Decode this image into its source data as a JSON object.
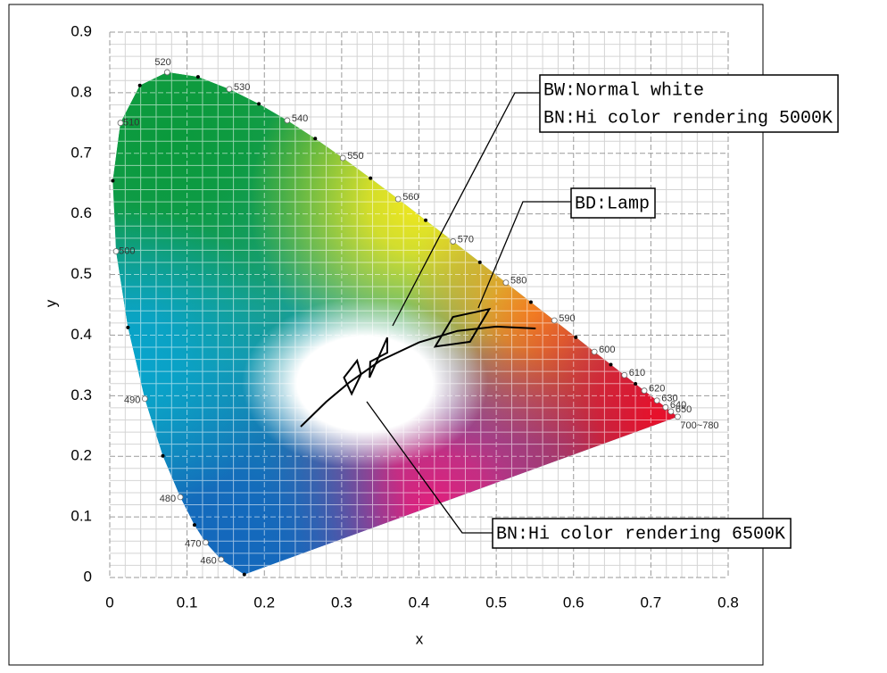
{
  "chart_data": {
    "type": "chromaticity",
    "xlabel": "x",
    "ylabel": "y",
    "xlim": [
      0,
      0.8
    ],
    "ylim": [
      0,
      0.9
    ],
    "xticks": [
      0,
      0.1,
      0.2,
      0.3,
      0.4,
      0.5,
      0.6,
      0.7,
      0.8
    ],
    "yticks": [
      0,
      0.1,
      0.2,
      0.3,
      0.4,
      0.5,
      0.6,
      0.7,
      0.8,
      0.9
    ],
    "grid": true,
    "minor_grid_divisions": 5,
    "locus": {
      "labels": [
        null,
        "460",
        "470",
        null,
        "480",
        null,
        "490",
        null,
        "500",
        null,
        "510",
        null,
        "520",
        null,
        "530",
        null,
        "540",
        null,
        "550",
        null,
        "560",
        null,
        "570",
        null,
        "580",
        null,
        "590",
        null,
        "600",
        null,
        "610",
        null,
        "620",
        "630",
        "640",
        "650",
        "700~780"
      ],
      "x": [
        0.1741,
        0.144,
        0.1241,
        0.1096,
        0.0913,
        0.0687,
        0.0454,
        0.0235,
        0.0082,
        0.0039,
        0.0139,
        0.0389,
        0.0743,
        0.1142,
        0.1547,
        0.1929,
        0.2296,
        0.2658,
        0.3016,
        0.3373,
        0.3731,
        0.4087,
        0.4441,
        0.4788,
        0.5125,
        0.5448,
        0.5752,
        0.6029,
        0.627,
        0.6482,
        0.6658,
        0.6801,
        0.6915,
        0.7079,
        0.719,
        0.726,
        0.7347
      ],
      "y": [
        0.005,
        0.0297,
        0.0578,
        0.0868,
        0.1327,
        0.2007,
        0.295,
        0.4127,
        0.5384,
        0.6548,
        0.7502,
        0.812,
        0.8338,
        0.8262,
        0.8059,
        0.7816,
        0.7543,
        0.7243,
        0.6923,
        0.6589,
        0.6245,
        0.5896,
        0.5547,
        0.5202,
        0.4866,
        0.4544,
        0.4242,
        0.3965,
        0.3725,
        0.3514,
        0.334,
        0.3197,
        0.3083,
        0.292,
        0.2809,
        0.274,
        0.2653
      ]
    },
    "planckian_locus": {
      "x": [
        0.247,
        0.28,
        0.31,
        0.35,
        0.4,
        0.45,
        0.5,
        0.551
      ],
      "y": [
        0.249,
        0.29,
        0.322,
        0.358,
        0.388,
        0.407,
        0.414,
        0.411
      ]
    },
    "regions": [
      {
        "x": [
          0.303,
          0.32,
          0.325,
          0.313
        ],
        "y": [
          0.33,
          0.358,
          0.335,
          0.303
        ]
      },
      {
        "x": [
          0.336,
          0.359,
          0.359,
          0.337
        ],
        "y": [
          0.33,
          0.396,
          0.371,
          0.356
        ]
      },
      {
        "x": [
          0.421,
          0.444,
          0.491,
          0.466
        ],
        "y": [
          0.381,
          0.43,
          0.443,
          0.389
        ]
      }
    ],
    "annotations": [
      {
        "lines": [
          "BW:Normal white",
          "BN:Hi color rendering 5000K"
        ]
      },
      {
        "lines": [
          "BD:Lamp"
        ]
      },
      {
        "lines": [
          "BN:Hi color rendering 6500K"
        ]
      }
    ]
  }
}
